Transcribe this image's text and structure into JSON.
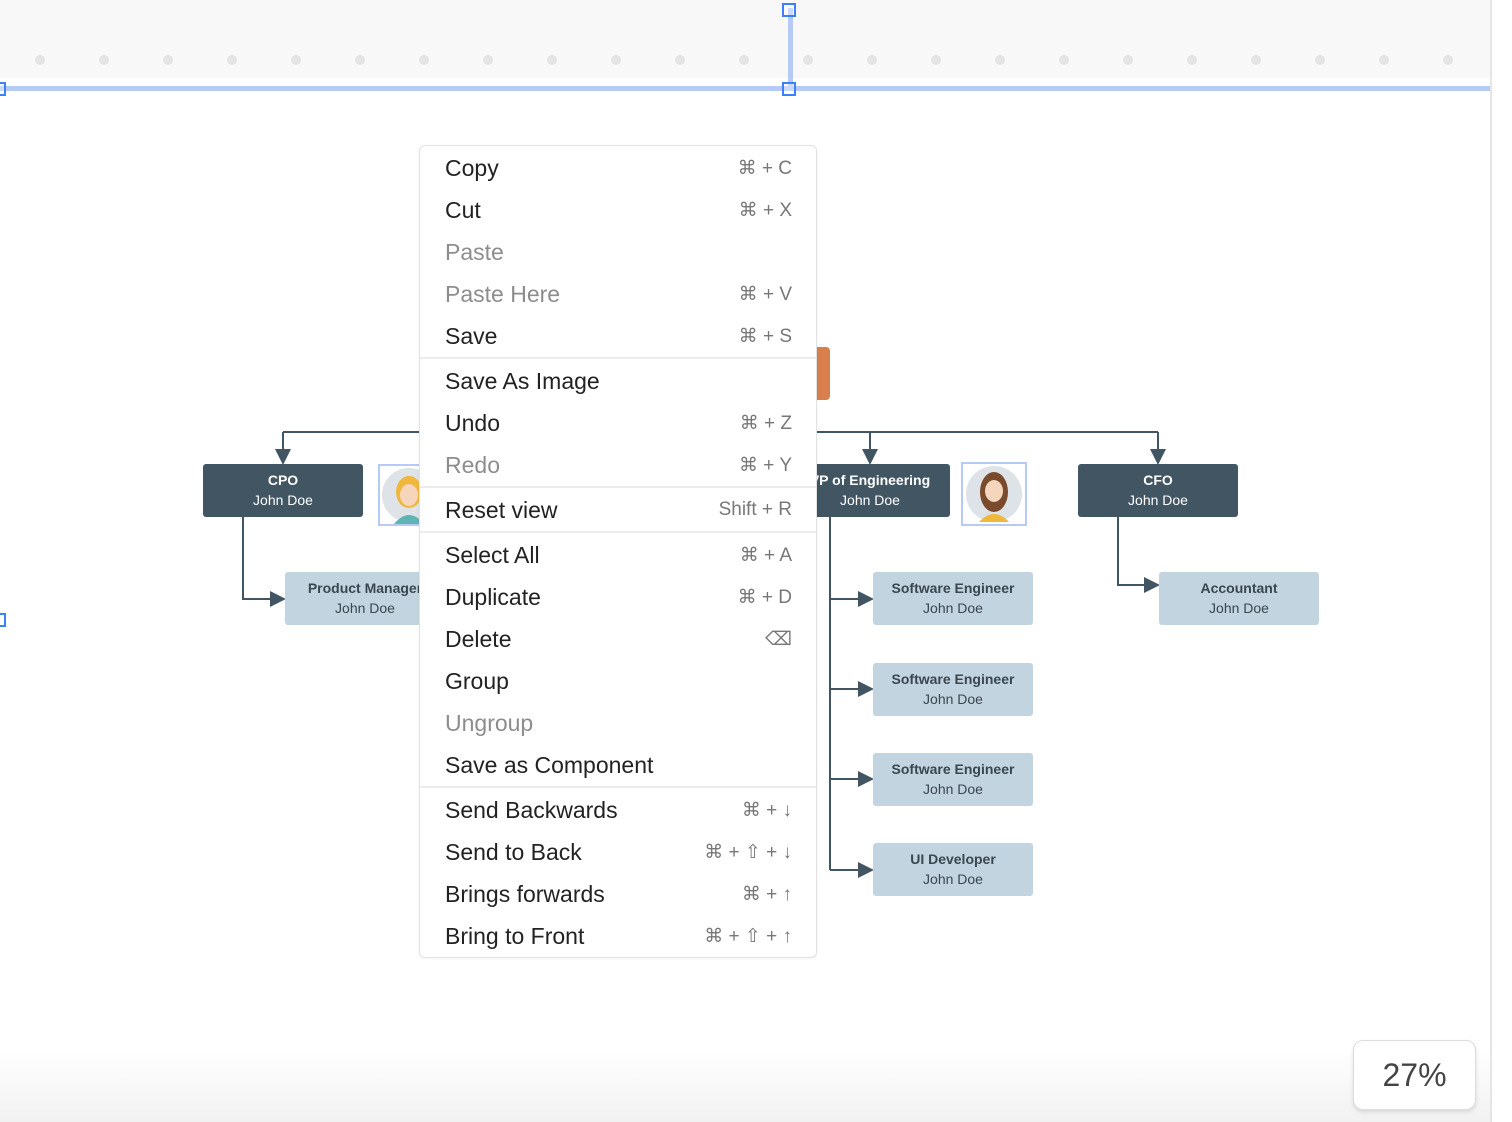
{
  "canvas": {
    "accent_color": "#3b82f6",
    "guide_color": "#b7c9f7"
  },
  "org_chart": {
    "top_node_color": "#d97f4c",
    "managers": [
      {
        "title": "CPO",
        "name": "John Doe"
      },
      {
        "title": "VP of Engineering",
        "name": "John Doe"
      },
      {
        "title": "CFO",
        "name": "John Doe"
      }
    ],
    "reports": [
      {
        "title": "Product Manager",
        "name": "John Doe"
      },
      {
        "title": "Software Engineer",
        "name": "John Doe"
      },
      {
        "title": "Software Engineer",
        "name": "John Doe"
      },
      {
        "title": "Software Engineer",
        "name": "John Doe"
      },
      {
        "title": "UI Developer",
        "name": "John Doe"
      },
      {
        "title": "Accountant",
        "name": "John Doe"
      }
    ]
  },
  "context_menu": {
    "groups": [
      [
        {
          "label": "Copy",
          "shortcut": "⌘ + C",
          "disabled": false
        },
        {
          "label": "Cut",
          "shortcut": "⌘ + X",
          "disabled": false
        },
        {
          "label": "Paste",
          "shortcut": "",
          "disabled": true
        },
        {
          "label": "Paste Here",
          "shortcut": "⌘ + V",
          "disabled": true
        },
        {
          "label": "Save",
          "shortcut": "⌘ + S",
          "disabled": false
        }
      ],
      [
        {
          "label": "Save As Image",
          "shortcut": "",
          "disabled": false
        },
        {
          "label": "Undo",
          "shortcut": "⌘ + Z",
          "disabled": false
        },
        {
          "label": "Redo",
          "shortcut": "⌘ + Y",
          "disabled": true
        }
      ],
      [
        {
          "label": "Reset view",
          "shortcut": "Shift + R",
          "disabled": false
        }
      ],
      [
        {
          "label": "Select All",
          "shortcut": "⌘ + A",
          "disabled": false
        },
        {
          "label": "Duplicate",
          "shortcut": "⌘ + D",
          "disabled": false
        },
        {
          "label": "Delete",
          "shortcut": "⌫",
          "disabled": false
        },
        {
          "label": "Group",
          "shortcut": "",
          "disabled": false
        },
        {
          "label": "Ungroup",
          "shortcut": "",
          "disabled": true
        },
        {
          "label": "Save as Component",
          "shortcut": "",
          "disabled": false
        }
      ],
      [
        {
          "label": "Send Backwards",
          "shortcut": "⌘ + ↓",
          "disabled": false
        },
        {
          "label": "Send to Back",
          "shortcut": "⌘ + ⇧ + ↓",
          "disabled": false
        },
        {
          "label": "Brings forwards",
          "shortcut": "⌘ + ↑",
          "disabled": false
        },
        {
          "label": "Bring to Front",
          "shortcut": "⌘ + ⇧ + ↑",
          "disabled": false
        }
      ]
    ]
  },
  "zoom_level": "27%"
}
